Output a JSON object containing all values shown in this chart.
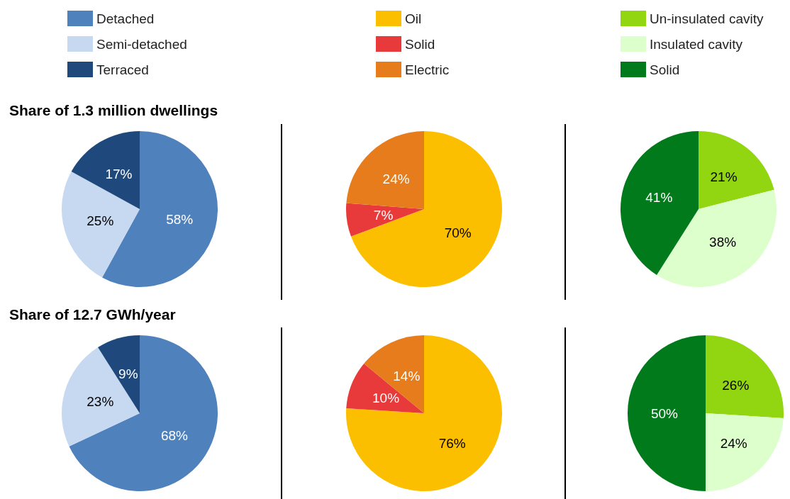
{
  "chart_data": [
    {
      "type": "pie",
      "title": "Share of 1.3 million dwellings",
      "categories": [
        "Detached",
        "Semi-detached",
        "Terraced"
      ],
      "values": [
        58,
        25,
        17
      ],
      "value_labels": [
        "58%",
        "25%",
        "17%"
      ],
      "colors": [
        "#4f81bd",
        "#c6d9f1",
        "#1f497d"
      ],
      "legend": "top"
    },
    {
      "type": "pie",
      "categories": [
        "Oil",
        "Solid",
        "Electric"
      ],
      "values": [
        70,
        7,
        24
      ],
      "value_labels": [
        "70%",
        "7%",
        "24%"
      ],
      "colors": [
        "#fcbf00",
        "#e83a3a",
        "#e67c1b"
      ],
      "legend": "top"
    },
    {
      "type": "pie",
      "categories": [
        "Un-insulated cavity",
        "Insulated cavity",
        "Solid"
      ],
      "values": [
        21,
        38,
        41
      ],
      "value_labels": [
        "21%",
        "38%",
        "41%"
      ],
      "colors": [
        "#92d611",
        "#dcffcc",
        "#007a1a"
      ],
      "legend": "top"
    },
    {
      "type": "pie",
      "title": "Share of 12.7 GWh/year",
      "categories": [
        null,
        null,
        null
      ],
      "values": [
        68,
        23,
        9
      ],
      "value_labels": [
        "68%",
        "23%",
        "9%"
      ],
      "colors": [
        "#4f81bd",
        "#c6d9f1",
        "#1f497d"
      ],
      "legend": false
    },
    {
      "type": "pie",
      "categories": [
        null,
        null,
        null
      ],
      "values": [
        76,
        10,
        14
      ],
      "value_labels": [
        "76%",
        "10%",
        "14%"
      ],
      "colors": [
        "#fcbf00",
        "#e83a3a",
        "#e67c1b"
      ],
      "legend": false
    },
    {
      "type": "pie",
      "categories": [
        null,
        null,
        null
      ],
      "values": [
        26,
        24,
        50
      ],
      "value_labels": [
        "26%",
        "24%",
        "50%"
      ],
      "colors": [
        "#92d611",
        "#dcffcc",
        "#007a1a"
      ],
      "legend": false
    }
  ]
}
